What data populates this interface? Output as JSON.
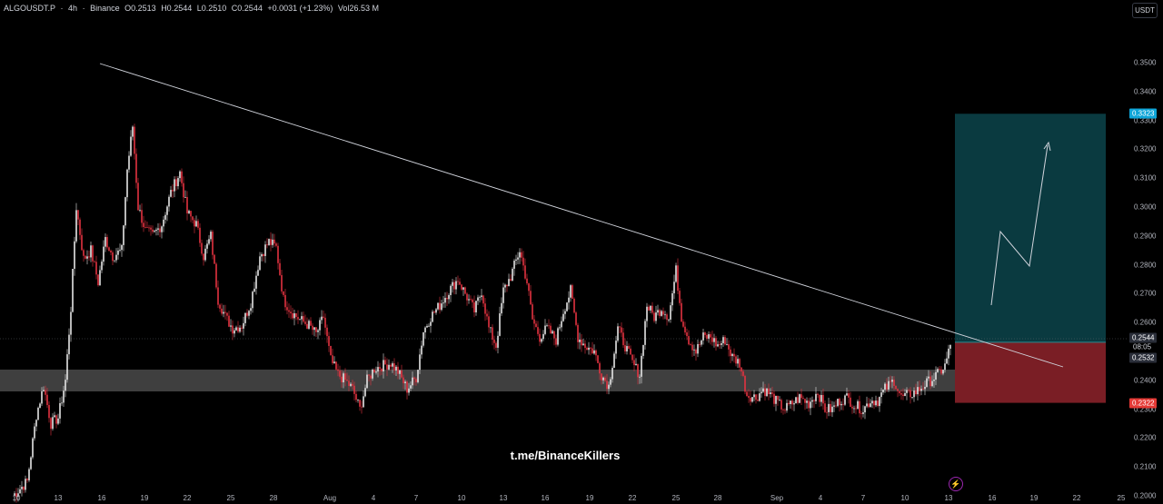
{
  "header": {
    "symbol": "ALGOUSDT.P",
    "timeframe": "4h",
    "exchange": "Binance",
    "open": "O0.2513",
    "high": "H0.2544",
    "low": "L0.2510",
    "close": "C0.2544",
    "change": "+0.0031 (+1.23%)",
    "volume": "Vol26.53 M",
    "separator": "·"
  },
  "currency_button": "USDT",
  "watermark": "t.me/BinanceKillers",
  "price_axis": [
    "0.3500",
    "0.3400",
    "0.3300",
    "0.3200",
    "0.3100",
    "0.3000",
    "0.2900",
    "0.2800",
    "0.2700",
    "0.2600",
    "0.2400",
    "0.2300",
    "0.2200",
    "0.2100",
    "0.2000"
  ],
  "price_axis_values": [
    0.35,
    0.34,
    0.33,
    0.32,
    0.31,
    0.3,
    0.29,
    0.28,
    0.27,
    0.26,
    0.24,
    0.23,
    0.22,
    0.21,
    0.2
  ],
  "time_axis": [
    "10",
    "13",
    "16",
    "19",
    "22",
    "25",
    "28",
    "Aug",
    "4",
    "7",
    "10",
    "13",
    "16",
    "19",
    "22",
    "25",
    "28",
    "Sep",
    "4",
    "7",
    "10",
    "13",
    "16",
    "19",
    "22",
    "25"
  ],
  "price_tags": {
    "target": {
      "label": "0.3323",
      "value": 0.3323,
      "color": "#0ea5d8"
    },
    "current": {
      "label": "0.2544",
      "value": 0.2544,
      "color": "#2a2e39"
    },
    "countdown": "08:05",
    "entry": {
      "label": "0.2532",
      "value": 0.2532,
      "color": "#2a2e39"
    },
    "stop": {
      "label": "0.2322",
      "value": 0.2322,
      "color": "#e53935"
    }
  },
  "colors": {
    "up": "#e6e6e6",
    "down": "#e23340",
    "support_zone": "#4a4a4a",
    "profit_zone": "#0a3a40",
    "loss_zone": "#7a1e25",
    "trendline": "#d1d4dc"
  },
  "icons": {
    "alert": "lightning-icon"
  }
}
